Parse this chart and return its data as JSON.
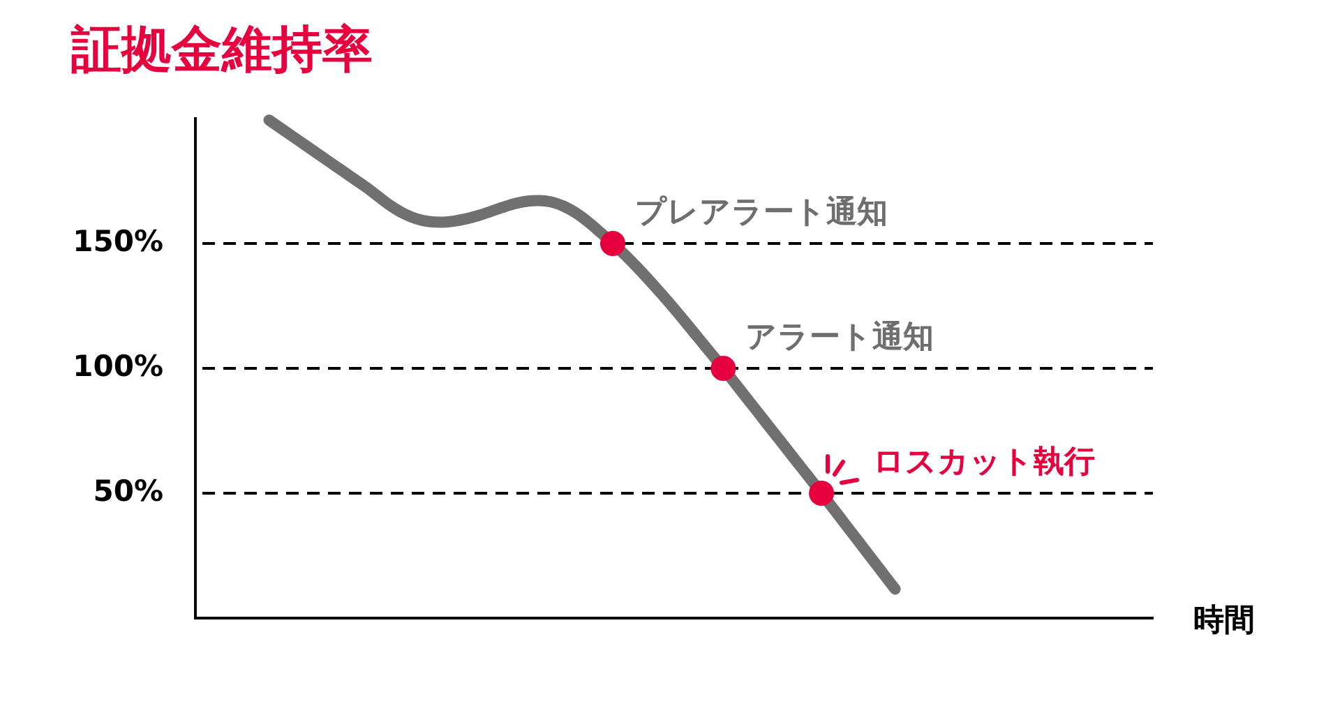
{
  "chart_data": {
    "type": "line",
    "title": "証拠金維持率",
    "xlabel": "時間",
    "categories": [
      null,
      null,
      null,
      null,
      null,
      null,
      null,
      null,
      null,
      null,
      null,
      null,
      null,
      null,
      null,
      null,
      null,
      null,
      null,
      null,
      null,
      null,
      null,
      null,
      null,
      null,
      null,
      null,
      null,
      null,
      null,
      null,
      null,
      null,
      null,
      null,
      null,
      null,
      null,
      null,
      null,
      null,
      null,
      null,
      null,
      null,
      null,
      null,
      null,
      null,
      null,
      null,
      null,
      null,
      null,
      null,
      null,
      null,
      null,
      null,
      null,
      null,
      null,
      null,
      null,
      null,
      null,
      null,
      null,
      null,
      null,
      null,
      null,
      null,
      null,
      null,
      null,
      null,
      null
    ],
    "series": [
      {
        "type": "line",
        "color": "#707070",
        "values": [
          null,
          null,
          null,
          null,
          null,
          null,
          199.4,
          196.0,
          192.6,
          189.2,
          185.8,
          182.4,
          179.0,
          175.6,
          172.2,
          168.4,
          164.8,
          161.9,
          159.9,
          158.8,
          158.5,
          158.9,
          159.8,
          161.1,
          162.7,
          164.4,
          165.9,
          166.9,
          167.2,
          166.6,
          164.9,
          162.2,
          158.6,
          154.4,
          150,
          145.4,
          140.4,
          135.1,
          129.6,
          123.9,
          118.0,
          112.0,
          106.0,
          100,
          93.8,
          87.5,
          81.3,
          75.0,
          68.8,
          62.5,
          56.3,
          50,
          43.6,
          37.2,
          30.8,
          24.4,
          18.0,
          11.6,
          null,
          null,
          null,
          null,
          null,
          null,
          null,
          null,
          null,
          null,
          null,
          null,
          null,
          null,
          null,
          null,
          null,
          null,
          null,
          null,
          null
        ]
      },
      {
        "type": "scatter",
        "color": "#e6003e",
        "marker": "circle",
        "values": [
          null,
          null,
          null,
          null,
          null,
          null,
          null,
          null,
          null,
          null,
          null,
          null,
          null,
          null,
          null,
          null,
          null,
          null,
          null,
          null,
          null,
          null,
          null,
          null,
          null,
          null,
          null,
          null,
          null,
          null,
          null,
          null,
          null,
          null,
          150,
          null,
          null,
          null,
          null,
          null,
          null,
          null,
          null,
          100,
          null,
          null,
          null,
          null,
          null,
          null,
          null,
          50,
          null,
          null,
          null,
          null,
          null,
          null,
          null,
          null,
          null,
          null,
          null,
          null,
          null,
          null,
          null,
          null,
          null,
          null,
          null,
          null,
          null,
          null,
          null,
          null,
          null,
          null,
          null
        ]
      }
    ],
    "ylim": [
      0,
      200
    ],
    "yticks": [
      {
        "value": 50,
        "label": "50%"
      },
      {
        "value": 100,
        "label": "100%"
      },
      {
        "value": 150,
        "label": "150%"
      }
    ],
    "ref_lines": [
      {
        "axis": "y",
        "value": 150,
        "label": "プレアラート通知",
        "color": "#000000",
        "line_style": "dashed"
      },
      {
        "axis": "y",
        "value": 100,
        "label": "アラート通知",
        "color": "#000000",
        "line_style": "dashed"
      },
      {
        "axis": "y",
        "value": 50,
        "label": "ロスカット執行",
        "color": "#000000",
        "line_style": "dashed"
      }
    ],
    "tick_labels": "y"
  }
}
